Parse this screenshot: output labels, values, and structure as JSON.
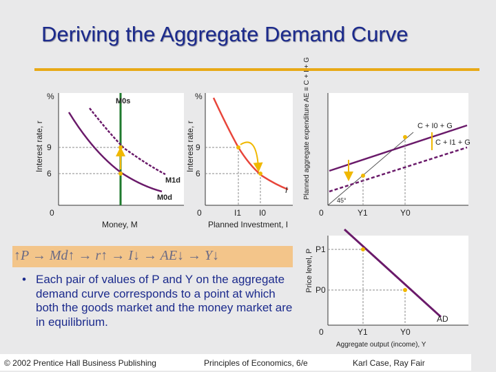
{
  "title": "Deriving the Aggregate Demand Curve",
  "chain": "↑P → Md↑ → r↑ → I↓ → AE↓ → Y↓",
  "bullet": "Each pair of values of P and Y on the aggregate demand curve corresponds to a point at which both the goods market and the money market are in equilibrium.",
  "footer": {
    "left": "© 2002 Prentice Hall Business Publishing",
    "center": "Principles of Economics, 6/e",
    "right": "Karl Case, Ray Fair"
  },
  "money_market": {
    "y_unit": "%",
    "y_label": "Interest rate, r",
    "x_label": "Money, M",
    "origin": "0",
    "y_ticks": [
      "9",
      "6"
    ],
    "supply": "M0s",
    "demand_1": "M1d",
    "demand_0": "M0d"
  },
  "investment": {
    "y_unit": "%",
    "y_label": "Interest rate, r",
    "x_label": "Planned Investment, I",
    "origin": "0",
    "y_ticks": [
      "9",
      "6"
    ],
    "x_ticks": [
      "I1",
      "I0"
    ],
    "curve": "I"
  },
  "goods_market": {
    "y_label": "Planned aggregate expenditure AE ≡ C + I + G",
    "line_0": "C + I0 + G",
    "line_1": "C + I1 + G",
    "angle": "45°",
    "origin": "0",
    "x_ticks": [
      "Y1",
      "Y0"
    ]
  },
  "ad": {
    "y_label": "Price level, P",
    "x_label": "Aggregate output (income), Y",
    "origin": "0",
    "y_ticks": [
      "P1",
      "P0"
    ],
    "x_ticks": [
      "Y1",
      "Y0"
    ],
    "curve": "AD"
  },
  "colors": {
    "title": "#1b2a8c",
    "accent_rule": "#e8a917",
    "curve": "#6a1a6a",
    "supply": "#1f7a2e",
    "investment": "#e8453a",
    "arrow": "#f0b800"
  }
}
